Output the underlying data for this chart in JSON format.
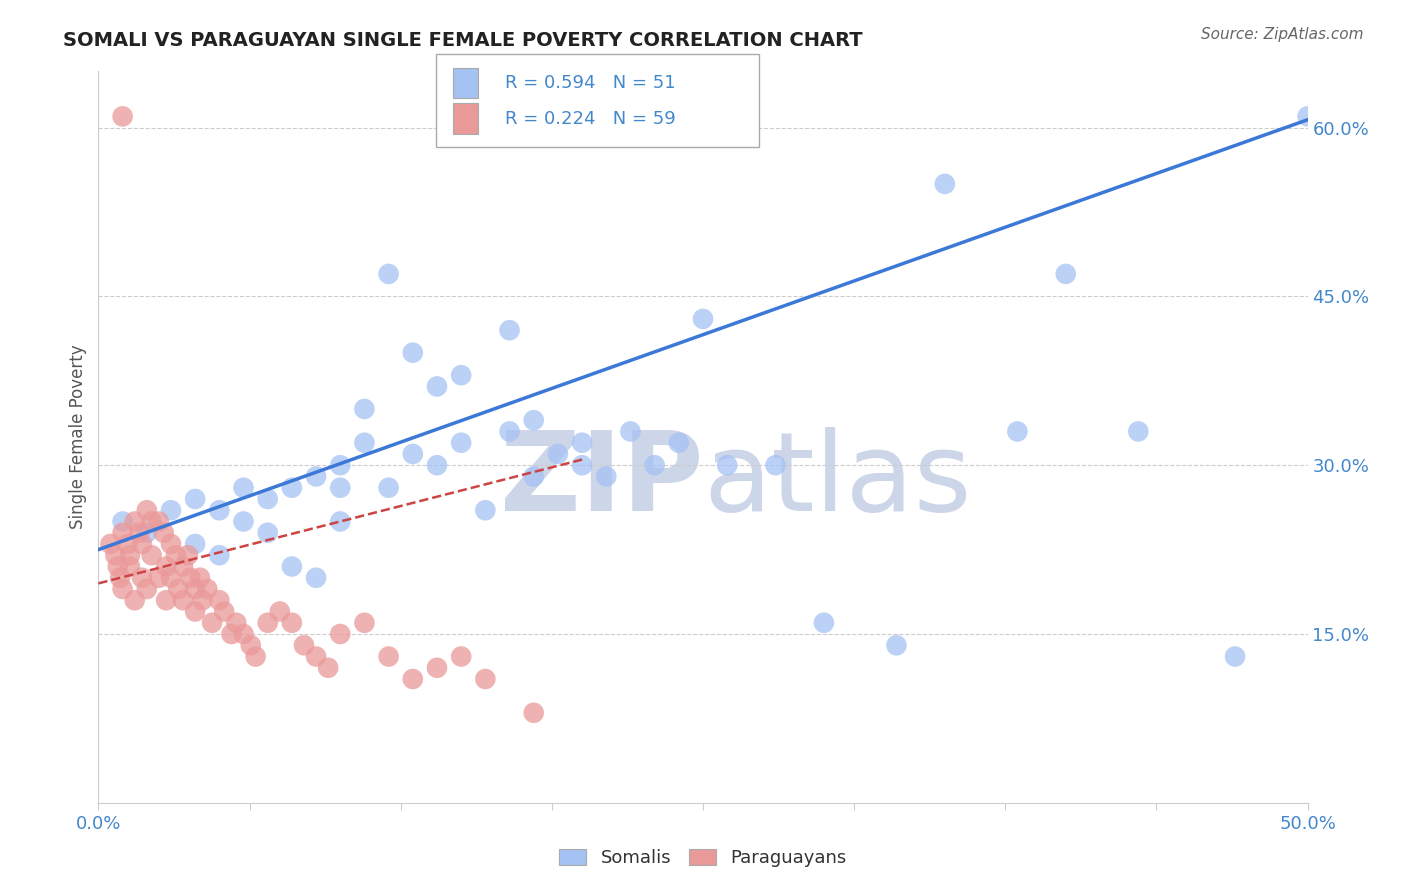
{
  "title": "SOMALI VS PARAGUAYAN SINGLE FEMALE POVERTY CORRELATION CHART",
  "source": "Source: ZipAtlas.com",
  "ylabel": "Single Female Poverty",
  "R_somali": 0.594,
  "N_somali": 51,
  "R_paraguayan": 0.224,
  "N_paraguayan": 59,
  "xlim": [
    0.0,
    0.5
  ],
  "ylim": [
    0.0,
    0.65
  ],
  "yticks": [
    0.15,
    0.3,
    0.45,
    0.6
  ],
  "ytick_labels": [
    "15.0%",
    "30.0%",
    "45.0%",
    "60.0%"
  ],
  "xtick_positions": [
    0.0,
    0.0625,
    0.125,
    0.1875,
    0.25,
    0.3125,
    0.375,
    0.4375,
    0.5
  ],
  "color_somali": "#a4c2f4",
  "color_paraguayan": "#ea9999",
  "color_somali_line": "#3c78d8",
  "color_paraguayan_line": "#cc4444",
  "watermark_color": "#cdd5e8",
  "title_color": "#222222",
  "tick_label_color": "#4488cc",
  "somali_x": [
    0.01,
    0.02,
    0.03,
    0.04,
    0.04,
    0.05,
    0.05,
    0.06,
    0.06,
    0.07,
    0.07,
    0.08,
    0.08,
    0.09,
    0.09,
    0.1,
    0.1,
    0.1,
    0.11,
    0.11,
    0.12,
    0.12,
    0.13,
    0.13,
    0.14,
    0.14,
    0.15,
    0.15,
    0.16,
    0.17,
    0.17,
    0.18,
    0.18,
    0.19,
    0.2,
    0.2,
    0.21,
    0.22,
    0.23,
    0.24,
    0.25,
    0.26,
    0.28,
    0.3,
    0.33,
    0.35,
    0.38,
    0.4,
    0.43,
    0.47,
    0.5
  ],
  "somali_y": [
    0.25,
    0.24,
    0.26,
    0.23,
    0.27,
    0.22,
    0.26,
    0.25,
    0.28,
    0.24,
    0.27,
    0.21,
    0.28,
    0.2,
    0.29,
    0.25,
    0.3,
    0.28,
    0.35,
    0.32,
    0.47,
    0.28,
    0.4,
    0.31,
    0.37,
    0.3,
    0.38,
    0.32,
    0.26,
    0.33,
    0.42,
    0.29,
    0.34,
    0.31,
    0.3,
    0.32,
    0.29,
    0.33,
    0.3,
    0.32,
    0.43,
    0.3,
    0.3,
    0.16,
    0.14,
    0.55,
    0.33,
    0.47,
    0.33,
    0.13,
    0.61
  ],
  "paraguayan_x": [
    0.005,
    0.007,
    0.008,
    0.009,
    0.01,
    0.01,
    0.012,
    0.013,
    0.013,
    0.015,
    0.015,
    0.017,
    0.018,
    0.018,
    0.02,
    0.02,
    0.022,
    0.022,
    0.025,
    0.025,
    0.027,
    0.028,
    0.028,
    0.03,
    0.03,
    0.032,
    0.033,
    0.035,
    0.035,
    0.037,
    0.038,
    0.04,
    0.04,
    0.042,
    0.043,
    0.045,
    0.047,
    0.05,
    0.052,
    0.055,
    0.057,
    0.06,
    0.063,
    0.065,
    0.07,
    0.075,
    0.08,
    0.085,
    0.09,
    0.095,
    0.1,
    0.11,
    0.12,
    0.13,
    0.14,
    0.15,
    0.16,
    0.18,
    0.01
  ],
  "paraguayan_y": [
    0.23,
    0.22,
    0.21,
    0.2,
    0.24,
    0.19,
    0.23,
    0.22,
    0.21,
    0.25,
    0.18,
    0.24,
    0.23,
    0.2,
    0.26,
    0.19,
    0.25,
    0.22,
    0.25,
    0.2,
    0.24,
    0.21,
    0.18,
    0.23,
    0.2,
    0.22,
    0.19,
    0.21,
    0.18,
    0.22,
    0.2,
    0.19,
    0.17,
    0.2,
    0.18,
    0.19,
    0.16,
    0.18,
    0.17,
    0.15,
    0.16,
    0.15,
    0.14,
    0.13,
    0.16,
    0.17,
    0.16,
    0.14,
    0.13,
    0.12,
    0.15,
    0.16,
    0.13,
    0.11,
    0.12,
    0.13,
    0.11,
    0.08,
    0.61
  ],
  "somali_line_x": [
    0.0,
    0.5
  ],
  "somali_line_y": [
    0.225,
    0.607
  ],
  "paraguayan_line_x": [
    0.0,
    0.2
  ],
  "paraguayan_line_y": [
    0.195,
    0.305
  ]
}
